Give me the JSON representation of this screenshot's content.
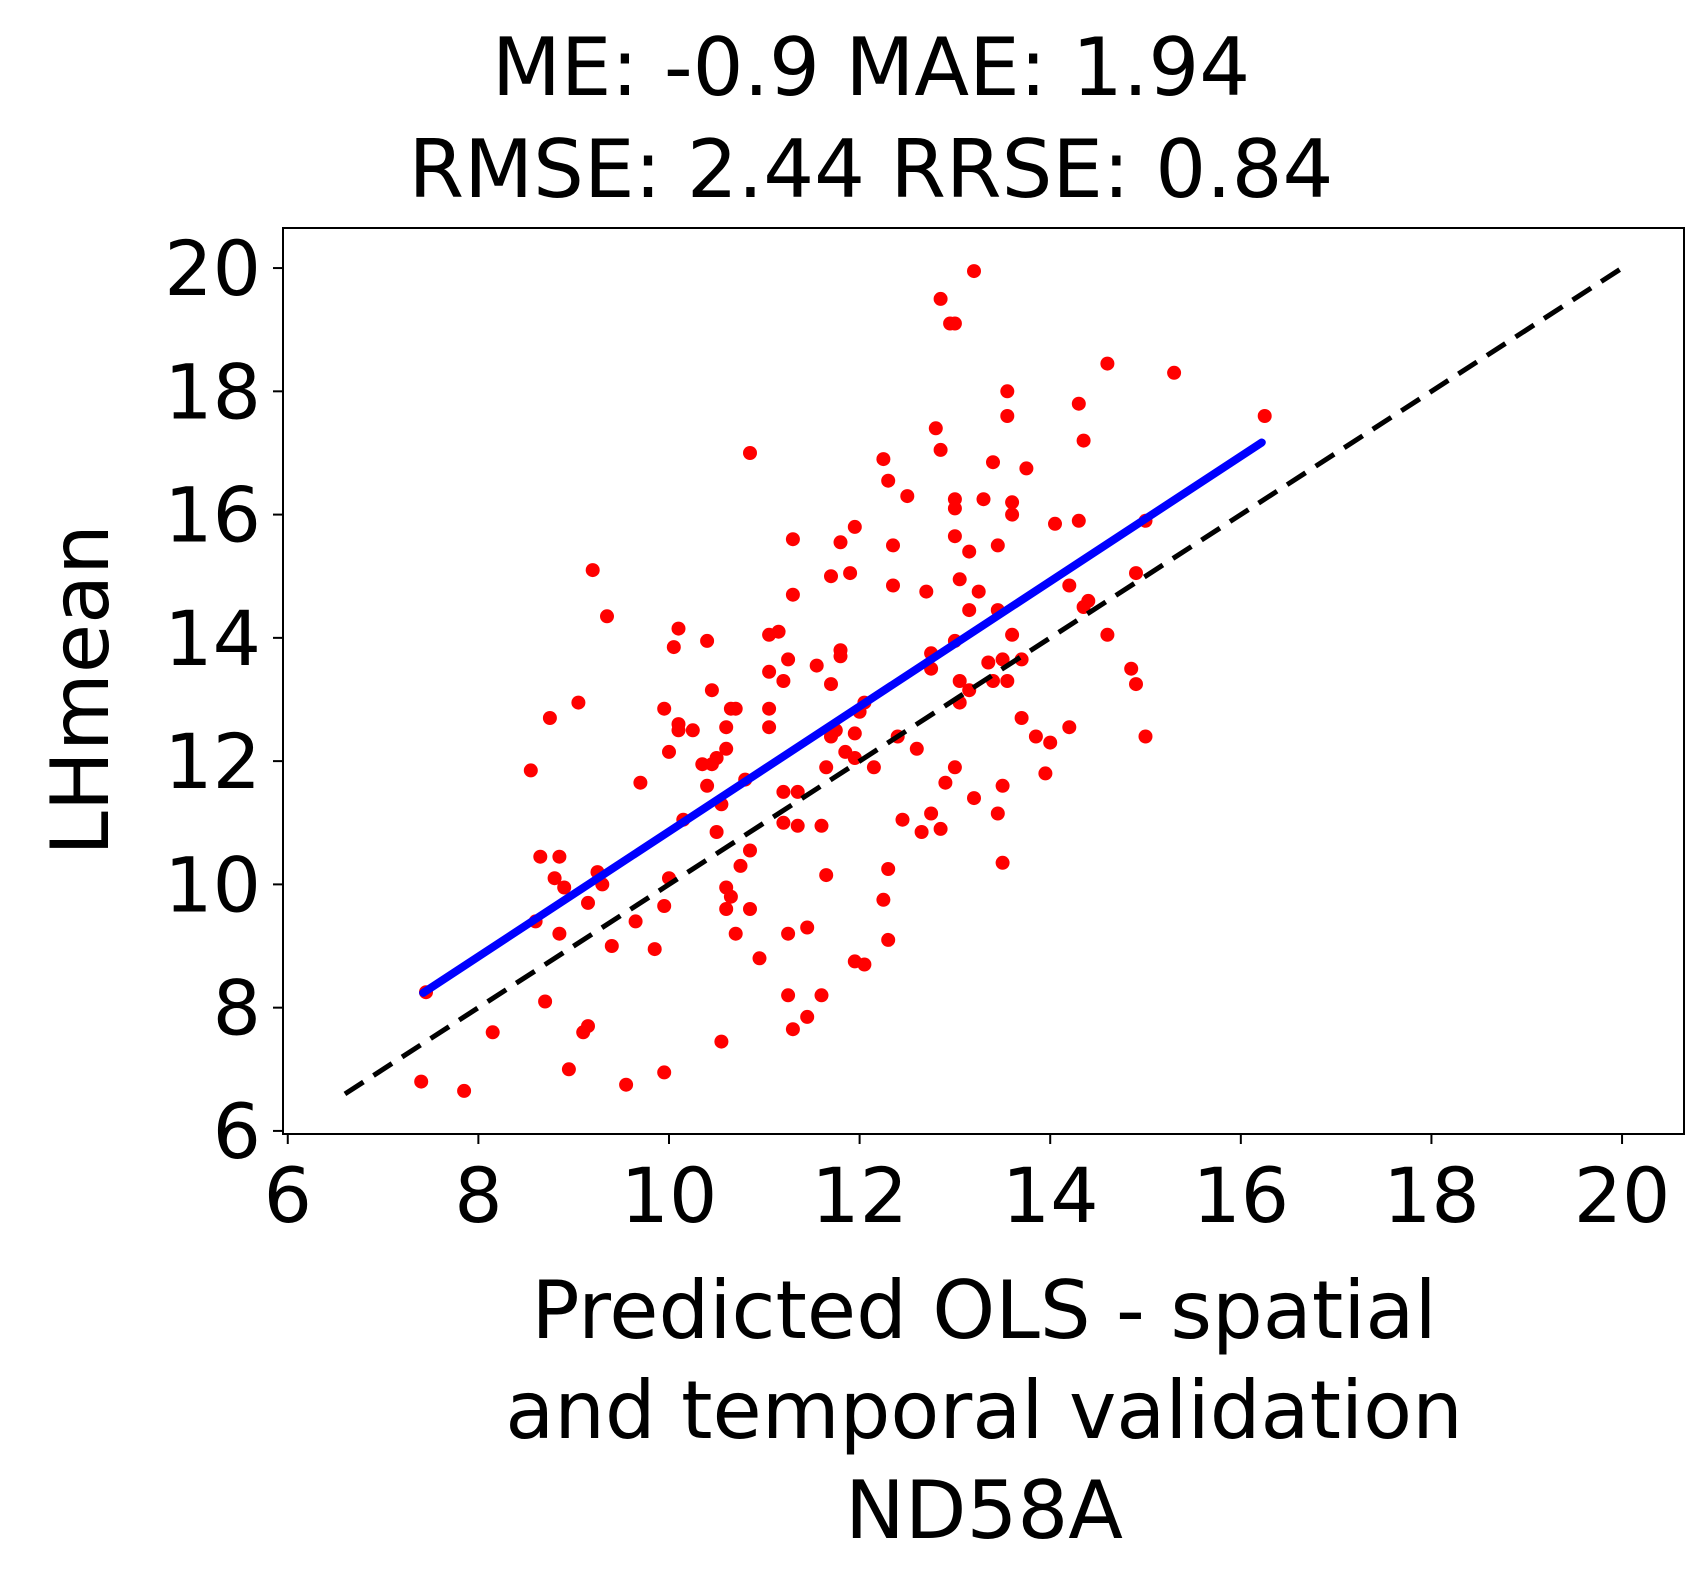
{
  "chart_data": {
    "type": "scatter",
    "title_lines": [
      "ME: -0.9 MAE: 1.94",
      "RMSE: 2.44 RRSE: 0.84"
    ],
    "xlabel_lines": [
      "Predicted OLS - spatial",
      "and temporal validation",
      "ND58A"
    ],
    "ylabel": "LHmean",
    "xlim": [
      5.95,
      20.65
    ],
    "ylim": [
      5.95,
      20.65
    ],
    "xticks": [
      6,
      8,
      10,
      12,
      14,
      16,
      18,
      20
    ],
    "yticks": [
      6,
      8,
      10,
      12,
      14,
      16,
      18,
      20
    ],
    "grid": false,
    "colors": {
      "points": "#ff0000",
      "fit_line": "#0000ff",
      "identity_line": "#000000"
    },
    "fit_line": {
      "x": [
        7.42,
        16.22
      ],
      "y": [
        8.24,
        17.17
      ]
    },
    "identity_line": {
      "x": [
        6.6,
        20.0
      ],
      "y": [
        6.6,
        20.0
      ]
    },
    "points": [
      [
        7.4,
        6.8
      ],
      [
        7.45,
        8.25
      ],
      [
        7.85,
        6.65
      ],
      [
        8.15,
        7.6
      ],
      [
        8.55,
        11.85
      ],
      [
        8.6,
        9.4
      ],
      [
        8.65,
        10.45
      ],
      [
        8.7,
        8.1
      ],
      [
        8.75,
        12.7
      ],
      [
        8.8,
        10.1
      ],
      [
        8.85,
        10.45
      ],
      [
        8.85,
        9.2
      ],
      [
        8.9,
        9.95
      ],
      [
        8.95,
        7.0
      ],
      [
        9.05,
        12.95
      ],
      [
        9.1,
        7.6
      ],
      [
        9.15,
        7.7
      ],
      [
        9.15,
        9.7
      ],
      [
        9.2,
        15.1
      ],
      [
        9.25,
        10.2
      ],
      [
        9.3,
        10.0
      ],
      [
        9.35,
        14.35
      ],
      [
        9.4,
        9.0
      ],
      [
        9.55,
        6.75
      ],
      [
        9.65,
        9.4
      ],
      [
        9.7,
        11.65
      ],
      [
        9.85,
        8.95
      ],
      [
        9.95,
        12.85
      ],
      [
        9.95,
        9.65
      ],
      [
        9.95,
        6.95
      ],
      [
        10.0,
        12.15
      ],
      [
        10.0,
        10.1
      ],
      [
        10.05,
        13.85
      ],
      [
        10.1,
        12.6
      ],
      [
        10.1,
        12.5
      ],
      [
        10.1,
        14.15
      ],
      [
        10.15,
        11.05
      ],
      [
        10.25,
        12.5
      ],
      [
        10.35,
        11.95
      ],
      [
        10.4,
        13.95
      ],
      [
        10.4,
        11.6
      ],
      [
        10.45,
        13.15
      ],
      [
        10.45,
        11.95
      ],
      [
        10.5,
        12.05
      ],
      [
        10.5,
        10.85
      ],
      [
        10.55,
        11.3
      ],
      [
        10.55,
        7.45
      ],
      [
        10.6,
        12.55
      ],
      [
        10.6,
        12.2
      ],
      [
        10.6,
        9.95
      ],
      [
        10.6,
        9.6
      ],
      [
        10.65,
        12.85
      ],
      [
        10.65,
        9.8
      ],
      [
        10.7,
        12.85
      ],
      [
        10.7,
        9.2
      ],
      [
        10.75,
        10.3
      ],
      [
        10.8,
        11.7
      ],
      [
        10.85,
        17.0
      ],
      [
        10.85,
        10.55
      ],
      [
        10.85,
        9.6
      ],
      [
        10.95,
        8.8
      ],
      [
        11.05,
        14.05
      ],
      [
        11.05,
        13.45
      ],
      [
        11.05,
        12.85
      ],
      [
        11.05,
        12.55
      ],
      [
        11.15,
        14.1
      ],
      [
        11.2,
        13.3
      ],
      [
        11.2,
        11.5
      ],
      [
        11.2,
        11.0
      ],
      [
        11.25,
        13.65
      ],
      [
        11.25,
        9.2
      ],
      [
        11.25,
        8.2
      ],
      [
        11.3,
        15.6
      ],
      [
        11.3,
        14.7
      ],
      [
        11.3,
        7.65
      ],
      [
        11.35,
        11.5
      ],
      [
        11.35,
        10.95
      ],
      [
        11.45,
        9.3
      ],
      [
        11.45,
        7.85
      ],
      [
        11.55,
        13.55
      ],
      [
        11.6,
        10.95
      ],
      [
        11.6,
        8.2
      ],
      [
        11.65,
        11.9
      ],
      [
        11.65,
        10.15
      ],
      [
        11.7,
        15.0
      ],
      [
        11.7,
        13.25
      ],
      [
        11.7,
        12.4
      ],
      [
        11.75,
        12.5
      ],
      [
        11.8,
        15.55
      ],
      [
        11.8,
        13.8
      ],
      [
        11.8,
        13.7
      ],
      [
        11.85,
        12.15
      ],
      [
        11.9,
        15.05
      ],
      [
        11.95,
        15.8
      ],
      [
        11.95,
        12.45
      ],
      [
        11.95,
        12.05
      ],
      [
        11.95,
        8.75
      ],
      [
        12.0,
        12.8
      ],
      [
        12.05,
        12.95
      ],
      [
        12.05,
        8.7
      ],
      [
        12.15,
        11.9
      ],
      [
        12.25,
        16.9
      ],
      [
        12.25,
        9.75
      ],
      [
        12.3,
        16.55
      ],
      [
        12.3,
        10.25
      ],
      [
        12.3,
        9.1
      ],
      [
        12.35,
        15.5
      ],
      [
        12.35,
        14.85
      ],
      [
        12.4,
        12.4
      ],
      [
        12.45,
        11.05
      ],
      [
        12.5,
        16.3
      ],
      [
        12.6,
        12.2
      ],
      [
        12.65,
        10.85
      ],
      [
        12.7,
        14.75
      ],
      [
        12.75,
        13.75
      ],
      [
        12.75,
        13.5
      ],
      [
        12.75,
        11.15
      ],
      [
        12.8,
        17.4
      ],
      [
        12.85,
        19.5
      ],
      [
        12.85,
        17.05
      ],
      [
        12.85,
        10.9
      ],
      [
        12.9,
        11.65
      ],
      [
        12.95,
        19.1
      ],
      [
        13.0,
        19.1
      ],
      [
        13.0,
        16.25
      ],
      [
        13.0,
        16.1
      ],
      [
        13.0,
        15.65
      ],
      [
        13.0,
        13.95
      ],
      [
        13.0,
        11.9
      ],
      [
        13.05,
        14.95
      ],
      [
        13.05,
        13.3
      ],
      [
        13.05,
        12.95
      ],
      [
        13.15,
        15.4
      ],
      [
        13.15,
        14.45
      ],
      [
        13.15,
        13.15
      ],
      [
        13.2,
        19.95
      ],
      [
        13.2,
        11.4
      ],
      [
        13.25,
        14.75
      ],
      [
        13.3,
        16.25
      ],
      [
        13.35,
        13.6
      ],
      [
        13.4,
        16.85
      ],
      [
        13.4,
        13.3
      ],
      [
        13.45,
        15.5
      ],
      [
        13.45,
        14.45
      ],
      [
        13.45,
        11.15
      ],
      [
        13.5,
        13.65
      ],
      [
        13.5,
        11.6
      ],
      [
        13.5,
        10.35
      ],
      [
        13.55,
        18.0
      ],
      [
        13.55,
        17.6
      ],
      [
        13.55,
        13.3
      ],
      [
        13.6,
        16.2
      ],
      [
        13.6,
        16.0
      ],
      [
        13.6,
        14.05
      ],
      [
        13.7,
        13.65
      ],
      [
        13.7,
        12.7
      ],
      [
        13.75,
        16.75
      ],
      [
        13.85,
        12.4
      ],
      [
        13.95,
        11.8
      ],
      [
        14.0,
        12.3
      ],
      [
        14.05,
        15.85
      ],
      [
        14.2,
        12.55
      ],
      [
        14.2,
        14.85
      ],
      [
        14.3,
        17.8
      ],
      [
        14.3,
        15.9
      ],
      [
        14.35,
        17.2
      ],
      [
        14.35,
        14.5
      ],
      [
        14.4,
        14.6
      ],
      [
        14.6,
        18.45
      ],
      [
        14.6,
        14.05
      ],
      [
        14.85,
        13.5
      ],
      [
        14.9,
        13.25
      ],
      [
        14.9,
        15.05
      ],
      [
        15.0,
        15.9
      ],
      [
        15.0,
        12.4
      ],
      [
        15.3,
        18.3
      ],
      [
        16.25,
        17.6
      ]
    ]
  }
}
